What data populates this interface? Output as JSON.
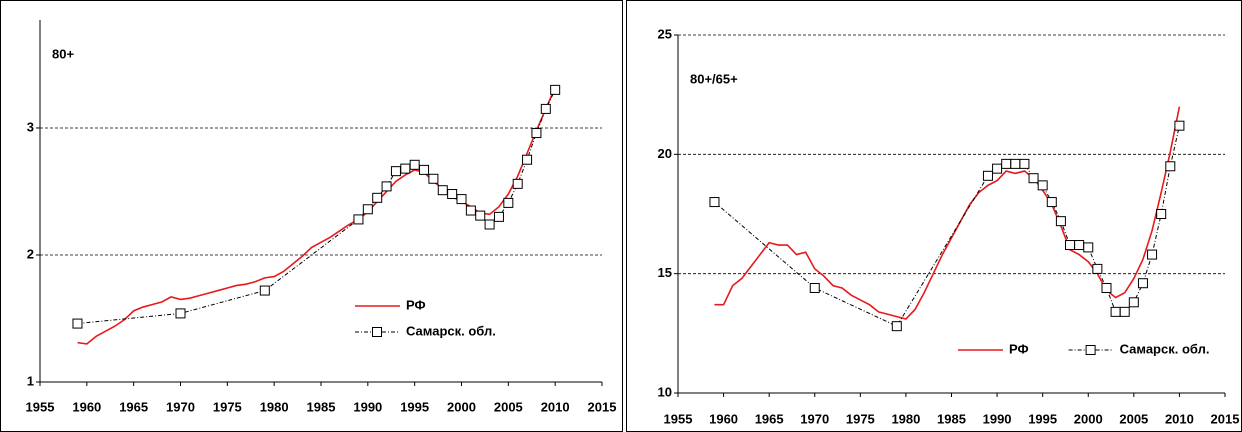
{
  "chart_data": [
    {
      "type": "line",
      "title": "80+",
      "xlim": [
        1955,
        2015
      ],
      "xticks": [
        1955,
        1960,
        1965,
        1970,
        1975,
        1980,
        1985,
        1990,
        1995,
        2000,
        2005,
        2010,
        2015
      ],
      "ylim": [
        1,
        3.85
      ],
      "yticks": [
        1,
        2,
        3
      ],
      "grid": true,
      "legend": "lower right",
      "series": [
        {
          "name": "РФ",
          "color": "#e8191c",
          "marker": false,
          "x": [
            1959,
            1960,
            1961,
            1962,
            1963,
            1964,
            1965,
            1966,
            1967,
            1968,
            1969,
            1970,
            1971,
            1972,
            1973,
            1974,
            1975,
            1976,
            1977,
            1978,
            1979,
            1980,
            1981,
            1982,
            1983,
            1984,
            1985,
            1986,
            1987,
            1988,
            1989,
            1990,
            1991,
            1992,
            1993,
            1994,
            1995,
            1996,
            1997,
            1998,
            1999,
            2000,
            2001,
            2002,
            2003,
            2004,
            2005,
            2006,
            2007,
            2008,
            2009,
            2010
          ],
          "values": [
            1.31,
            1.3,
            1.36,
            1.4,
            1.44,
            1.49,
            1.56,
            1.59,
            1.61,
            1.63,
            1.67,
            1.65,
            1.66,
            1.68,
            1.7,
            1.72,
            1.74,
            1.76,
            1.77,
            1.79,
            1.82,
            1.83,
            1.87,
            1.93,
            1.99,
            2.06,
            2.1,
            2.14,
            2.19,
            2.24,
            2.28,
            2.34,
            2.42,
            2.5,
            2.58,
            2.63,
            2.67,
            2.65,
            2.58,
            2.52,
            2.46,
            2.42,
            2.38,
            2.33,
            2.32,
            2.38,
            2.48,
            2.62,
            2.8,
            2.98,
            3.15,
            3.32
          ]
        },
        {
          "name": "Самарск. обл.",
          "color": "#000000",
          "marker": true,
          "x": [
            1959,
            1970,
            1979,
            1989,
            1990,
            1991,
            1992,
            1993,
            1994,
            1995,
            1996,
            1997,
            1998,
            1999,
            2000,
            2001,
            2002,
            2003,
            2004,
            2005,
            2006,
            2007,
            2008,
            2009,
            2010
          ],
          "values": [
            1.46,
            1.54,
            1.72,
            2.28,
            2.36,
            2.45,
            2.54,
            2.66,
            2.68,
            2.71,
            2.67,
            2.6,
            2.51,
            2.48,
            2.44,
            2.35,
            2.31,
            2.24,
            2.3,
            2.41,
            2.56,
            2.75,
            2.96,
            3.15,
            3.3
          ]
        }
      ]
    },
    {
      "type": "line",
      "title": "80+/65+",
      "xlim": [
        1955,
        2015
      ],
      "xticks": [
        1955,
        1960,
        1965,
        1970,
        1975,
        1980,
        1985,
        1990,
        1995,
        2000,
        2005,
        2010,
        2015
      ],
      "ylim": [
        10,
        25
      ],
      "yticks": [
        10,
        15,
        20,
        25
      ],
      "grid": true,
      "legend": "lower right",
      "series": [
        {
          "name": "РФ",
          "color": "#e8191c",
          "marker": false,
          "x": [
            1959,
            1960,
            1961,
            1962,
            1963,
            1964,
            1965,
            1966,
            1967,
            1968,
            1969,
            1970,
            1971,
            1972,
            1973,
            1974,
            1975,
            1976,
            1977,
            1978,
            1979,
            1980,
            1981,
            1982,
            1983,
            1984,
            1985,
            1986,
            1987,
            1988,
            1989,
            1990,
            1991,
            1992,
            1993,
            1994,
            1995,
            1996,
            1997,
            1998,
            1999,
            2000,
            2001,
            2002,
            2003,
            2004,
            2005,
            2006,
            2007,
            2008,
            2009,
            2010
          ],
          "values": [
            13.7,
            13.7,
            14.5,
            14.8,
            15.3,
            15.8,
            16.3,
            16.2,
            16.2,
            15.8,
            15.9,
            15.2,
            14.9,
            14.5,
            14.4,
            14.1,
            13.9,
            13.7,
            13.4,
            13.3,
            13.2,
            13.1,
            13.5,
            14.2,
            15.0,
            15.8,
            16.5,
            17.2,
            17.9,
            18.4,
            18.7,
            18.9,
            19.3,
            19.2,
            19.3,
            19.0,
            18.5,
            17.9,
            17.0,
            16.0,
            15.8,
            15.5,
            15.0,
            14.3,
            14.0,
            14.2,
            14.8,
            15.6,
            16.8,
            18.4,
            20.1,
            22.0
          ]
        },
        {
          "name": "Самарск. обл.",
          "color": "#000000",
          "marker": true,
          "x": [
            1959,
            1970,
            1979,
            1989,
            1990,
            1991,
            1992,
            1993,
            1994,
            1995,
            1996,
            1997,
            1998,
            1999,
            2000,
            2001,
            2002,
            2003,
            2004,
            2005,
            2006,
            2007,
            2008,
            2009,
            2010
          ],
          "values": [
            18.0,
            14.4,
            12.8,
            19.1,
            19.4,
            19.6,
            19.6,
            19.6,
            19.0,
            18.7,
            18.0,
            17.2,
            16.2,
            16.2,
            16.1,
            15.2,
            14.4,
            13.4,
            13.4,
            13.8,
            14.6,
            15.8,
            17.5,
            19.5,
            21.2
          ]
        }
      ]
    }
  ]
}
